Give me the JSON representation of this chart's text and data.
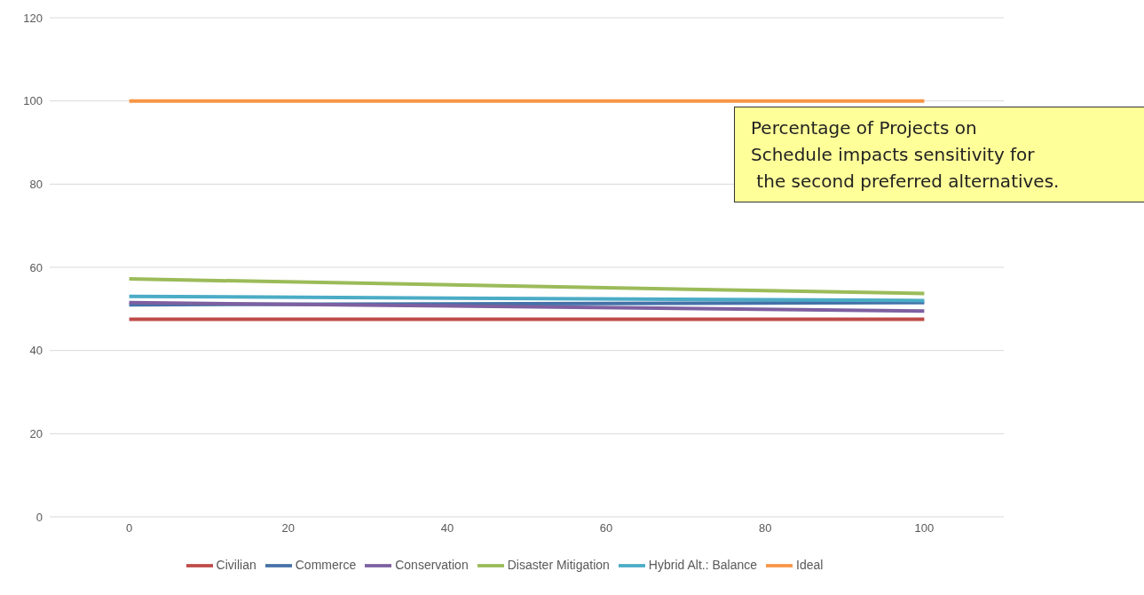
{
  "chart_data": {
    "type": "line",
    "x": [
      0,
      100
    ],
    "xlim": [
      -10,
      110
    ],
    "xticks": [
      0,
      20,
      40,
      60,
      80,
      100
    ],
    "ylim": [
      0,
      120
    ],
    "yticks": [
      0,
      20,
      40,
      60,
      80,
      100,
      120
    ],
    "grid": "y",
    "legend": "bottom",
    "marker": "none",
    "line_style": "solid",
    "series": [
      {
        "name": "Commerce",
        "color": "#4472a8",
        "values": [
          51,
          51.5
        ]
      },
      {
        "name": "Civilian",
        "color": "#be4b48",
        "values": [
          47.5,
          47.5
        ]
      },
      {
        "name": "Disaster Mitigation",
        "color": "#9bbb59",
        "values": [
          57.2,
          53.7
        ]
      },
      {
        "name": "Conservation",
        "color": "#7d60a0",
        "values": [
          51.5,
          49.5
        ]
      },
      {
        "name": "Hybrid Alt.: Balance",
        "color": "#4bacc6",
        "values": [
          53,
          52
        ]
      },
      {
        "name": "Ideal",
        "color": "#f79646",
        "values": [
          100,
          100
        ]
      }
    ],
    "annotations": [
      "Percentage of Projects on\nSchedule impacts sensitivity for\n the second preferred alternatives."
    ]
  }
}
